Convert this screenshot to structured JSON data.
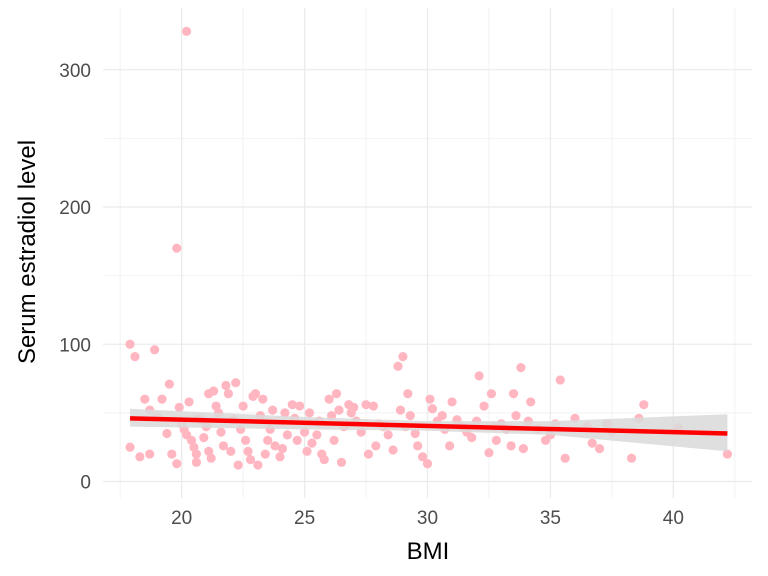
{
  "chart_data": {
    "type": "scatter",
    "xlabel": "BMI",
    "ylabel": "Serum estradiol level",
    "xlim": [
      16.8,
      43.2
    ],
    "ylim": [
      -12,
      345
    ],
    "x_ticks": [
      20,
      25,
      30,
      35,
      40
    ],
    "y_ticks": [
      0,
      100,
      200,
      300
    ],
    "grid": true,
    "legend": "none",
    "colors": {
      "points": "#ffb6c1",
      "fit_line": "#ff0000",
      "ribbon": "#d9d9d9"
    },
    "points": [
      [
        17.9,
        100
      ],
      [
        18.1,
        91
      ],
      [
        17.9,
        25
      ],
      [
        18.3,
        18
      ],
      [
        18.5,
        60
      ],
      [
        18.7,
        20
      ],
      [
        18.9,
        96
      ],
      [
        18.7,
        52
      ],
      [
        19.0,
        48
      ],
      [
        19.2,
        60
      ],
      [
        19.4,
        35
      ],
      [
        19.5,
        71
      ],
      [
        19.6,
        20
      ],
      [
        19.8,
        13
      ],
      [
        19.9,
        54
      ],
      [
        20.0,
        42
      ],
      [
        20.1,
        38
      ],
      [
        20.2,
        34
      ],
      [
        20.3,
        58
      ],
      [
        20.4,
        30
      ],
      [
        20.5,
        25
      ],
      [
        20.6,
        20
      ],
      [
        20.6,
        14
      ],
      [
        20.7,
        46
      ],
      [
        20.8,
        45
      ],
      [
        20.9,
        32
      ],
      [
        21.0,
        40
      ],
      [
        21.1,
        22
      ],
      [
        21.2,
        17
      ],
      [
        21.1,
        64
      ],
      [
        21.3,
        66
      ],
      [
        21.4,
        55
      ],
      [
        21.5,
        50
      ],
      [
        21.6,
        36
      ],
      [
        21.7,
        26
      ],
      [
        21.8,
        70
      ],
      [
        21.9,
        64
      ],
      [
        22.0,
        22
      ],
      [
        22.1,
        45
      ],
      [
        22.2,
        72
      ],
      [
        22.3,
        12
      ],
      [
        22.4,
        38
      ],
      [
        22.5,
        55
      ],
      [
        22.6,
        30
      ],
      [
        22.7,
        22
      ],
      [
        22.8,
        16
      ],
      [
        22.9,
        62
      ],
      [
        23.0,
        64
      ],
      [
        23.1,
        12
      ],
      [
        23.2,
        48
      ],
      [
        23.3,
        60
      ],
      [
        23.4,
        20
      ],
      [
        23.5,
        30
      ],
      [
        23.6,
        38
      ],
      [
        23.7,
        52
      ],
      [
        23.8,
        26
      ],
      [
        24.0,
        18
      ],
      [
        24.1,
        24
      ],
      [
        24.2,
        50
      ],
      [
        24.3,
        34
      ],
      [
        24.5,
        56
      ],
      [
        24.6,
        46
      ],
      [
        24.7,
        30
      ],
      [
        24.8,
        55
      ],
      [
        25.0,
        36
      ],
      [
        25.1,
        22
      ],
      [
        25.2,
        50
      ],
      [
        25.3,
        28
      ],
      [
        25.5,
        34
      ],
      [
        25.6,
        44
      ],
      [
        25.7,
        20
      ],
      [
        25.8,
        16
      ],
      [
        26.0,
        60
      ],
      [
        26.1,
        48
      ],
      [
        26.2,
        30
      ],
      [
        26.3,
        64
      ],
      [
        26.4,
        52
      ],
      [
        26.5,
        14
      ],
      [
        26.6,
        40
      ],
      [
        26.8,
        56
      ],
      [
        26.9,
        50
      ],
      [
        27.0,
        54
      ],
      [
        27.1,
        44
      ],
      [
        27.3,
        36
      ],
      [
        27.5,
        56
      ],
      [
        27.6,
        20
      ],
      [
        27.8,
        55
      ],
      [
        27.9,
        26
      ],
      [
        28.0,
        42
      ],
      [
        28.2,
        40
      ],
      [
        28.4,
        34
      ],
      [
        28.6,
        23
      ],
      [
        28.8,
        84
      ],
      [
        28.9,
        52
      ],
      [
        29.0,
        91
      ],
      [
        29.1,
        40
      ],
      [
        29.2,
        64
      ],
      [
        29.3,
        48
      ],
      [
        29.5,
        35
      ],
      [
        29.6,
        26
      ],
      [
        29.8,
        18
      ],
      [
        30.0,
        13
      ],
      [
        30.1,
        60
      ],
      [
        30.2,
        53
      ],
      [
        30.4,
        44
      ],
      [
        30.6,
        48
      ],
      [
        30.7,
        38
      ],
      [
        30.9,
        26
      ],
      [
        31.0,
        58
      ],
      [
        31.2,
        45
      ],
      [
        31.4,
        40
      ],
      [
        31.6,
        36
      ],
      [
        31.8,
        32
      ],
      [
        32.0,
        44
      ],
      [
        32.1,
        77
      ],
      [
        32.3,
        55
      ],
      [
        32.5,
        21
      ],
      [
        32.6,
        64
      ],
      [
        32.7,
        40
      ],
      [
        32.8,
        30
      ],
      [
        33.0,
        42
      ],
      [
        33.2,
        38
      ],
      [
        33.4,
        26
      ],
      [
        33.5,
        64
      ],
      [
        33.6,
        48
      ],
      [
        33.8,
        83
      ],
      [
        33.9,
        24
      ],
      [
        34.1,
        44
      ],
      [
        34.2,
        58
      ],
      [
        34.5,
        38
      ],
      [
        34.8,
        30
      ],
      [
        35.0,
        34
      ],
      [
        35.2,
        42
      ],
      [
        35.4,
        74
      ],
      [
        35.6,
        17
      ],
      [
        36.0,
        46
      ],
      [
        36.5,
        40
      ],
      [
        36.7,
        28
      ],
      [
        37.0,
        24
      ],
      [
        37.3,
        42
      ],
      [
        37.5,
        36
      ],
      [
        38.3,
        17
      ],
      [
        38.6,
        46
      ],
      [
        38.8,
        56
      ],
      [
        40.2,
        39
      ],
      [
        42.2,
        20
      ],
      [
        20.2,
        328
      ],
      [
        19.8,
        170
      ]
    ],
    "fit": {
      "x": [
        17.9,
        42.2
      ],
      "y": [
        46,
        35
      ]
    },
    "ribbon": {
      "upper": [
        [
          17.9,
          53
        ],
        [
          25,
          47
        ],
        [
          30,
          44
        ],
        [
          35,
          44
        ],
        [
          42.2,
          49
        ]
      ],
      "lower": [
        [
          42.2,
          22
        ],
        [
          35,
          34
        ],
        [
          30,
          37
        ],
        [
          25,
          38
        ],
        [
          17.9,
          40
        ]
      ]
    }
  }
}
